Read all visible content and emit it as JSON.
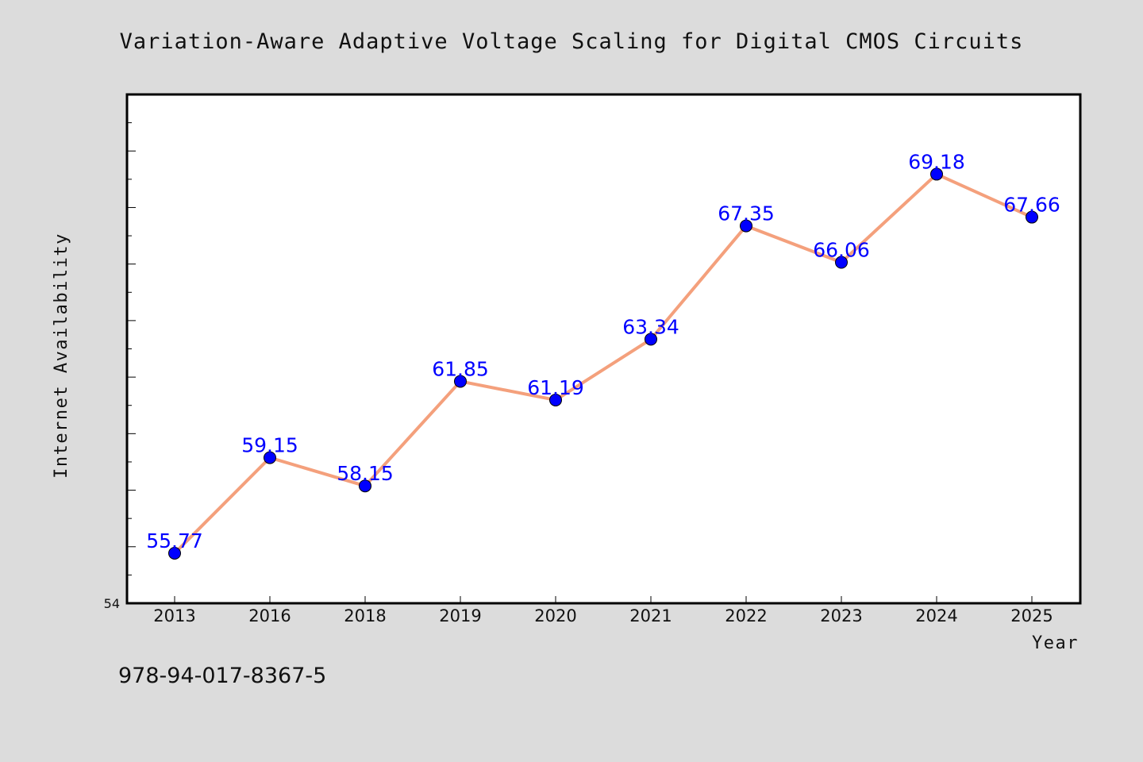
{
  "chart_data": {
    "type": "line",
    "title": "Variation-Aware Adaptive Voltage Scaling for Digital CMOS Circuits",
    "xlabel": "Year",
    "ylabel": "Internet Availability",
    "categories": [
      "2013",
      "2016",
      "2018",
      "2019",
      "2020",
      "2021",
      "2022",
      "2023",
      "2024",
      "2025"
    ],
    "values": [
      55.77,
      59.15,
      58.15,
      61.85,
      61.19,
      63.34,
      67.35,
      66.06,
      69.18,
      67.66
    ],
    "data_labels": [
      "55.77",
      "59.15",
      "58.15",
      "61.85",
      "61.19",
      "63.34",
      "67.35",
      "66.06",
      "69.18",
      "67.66"
    ],
    "ylim": [
      54,
      72
    ],
    "y_min_label": "54",
    "grid": false,
    "legend": "none",
    "line_color": "#f4a07c",
    "marker_color": "#0000ff",
    "label_color": "#0000ff"
  },
  "footer": {
    "isbn": "978-94-017-8367-5"
  },
  "colors": {
    "background": "#dcdcdc",
    "plot_background": "#ffffff"
  }
}
